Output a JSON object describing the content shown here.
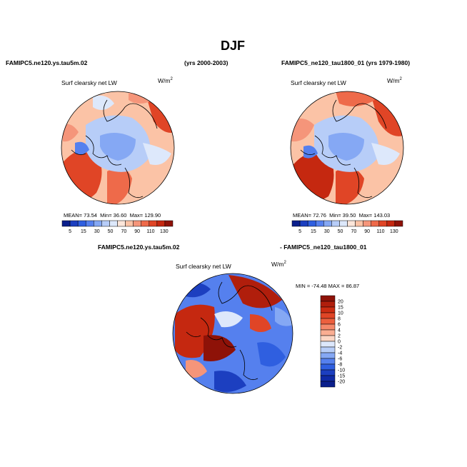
{
  "page": {
    "title": "DJF",
    "left_case": "FAMIPC5.ne120.ys.tau5m.02",
    "left_years": "(yrs 2000-2003)",
    "right_case": "FAMIPC5_ne120_tau1800_01 (yrs 1979-1980)",
    "diff_case_a": "FAMIPC5.ne120.ys.tau5m.02",
    "diff_case_b": "- FAMIPC5_ne120_tau1800_01"
  },
  "panels": {
    "left": {
      "field": "Surf clearsky net LW",
      "units": "W/m",
      "units_exp": "2",
      "mean_label": "MEAN=",
      "mean": "73.54",
      "min_label": "Min=",
      "min": "36.60",
      "max_label": "Max=",
      "max": "129.90"
    },
    "right": {
      "field": "Surf clearsky net LW",
      "units": "W/m",
      "units_exp": "2",
      "mean_label": "MEAN=",
      "mean": "72.76",
      "min_label": "Min=",
      "min": "39.50",
      "max_label": "Max=",
      "max": "143.03"
    },
    "diff": {
      "field": "Surf clearsky net LW",
      "units": "W/m",
      "units_exp": "2",
      "minmax": "MIN = -74.48 MAX =  86.87"
    }
  },
  "colorbar_abs": {
    "labels": [
      "5",
      "15",
      "30",
      "50",
      "70",
      "90",
      "110",
      "130"
    ],
    "colors": [
      "#0a1f8c",
      "#1c3fc0",
      "#2f5fe0",
      "#5580ee",
      "#85a8f4",
      "#b7cdf8",
      "#dde8fb",
      "#fde6da",
      "#fbc3a6",
      "#f5957a",
      "#ee6a4a",
      "#e04526",
      "#c52810",
      "#8e1208"
    ]
  },
  "colorbar_diff": {
    "labels": [
      "20",
      "15",
      "10",
      "8",
      "6",
      "4",
      "2",
      "0",
      "-2",
      "-4",
      "-6",
      "-8",
      "-10",
      "-15",
      "-20"
    ],
    "colors": [
      "#8e1208",
      "#b01e0c",
      "#cc2c12",
      "#e04526",
      "#ec5f3e",
      "#f5886a",
      "#faae92",
      "#fcd6c4",
      "#dce7fb",
      "#b7cdf8",
      "#85a8f4",
      "#5580ee",
      "#2f5fe0",
      "#1c3fc0",
      "#0f2aa6",
      "#0a1f8c"
    ]
  },
  "colors": {
    "ocean_warm": "#e64a2a",
    "arctic_cool": "#b7cdf8"
  }
}
